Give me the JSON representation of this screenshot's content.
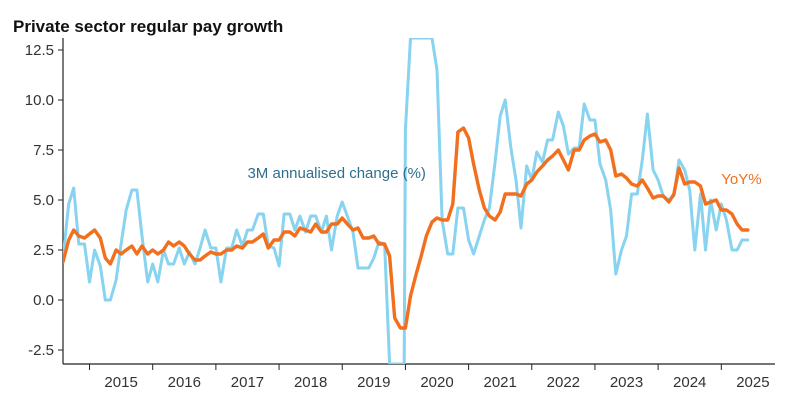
{
  "chart_data": {
    "type": "line",
    "title": "Private sector regular pay growth",
    "xlabel": "",
    "ylabel": "",
    "ylim": [
      -3.2,
      13.1
    ],
    "xlim": [
      2014.58,
      2025.85
    ],
    "x_ticks": [
      {
        "value": 2015.5,
        "label": "2015"
      },
      {
        "value": 2016.5,
        "label": "2016"
      },
      {
        "value": 2017.5,
        "label": "2017"
      },
      {
        "value": 2018.5,
        "label": "2018"
      },
      {
        "value": 2019.5,
        "label": "2019"
      },
      {
        "value": 2020.5,
        "label": "2020"
      },
      {
        "value": 2021.5,
        "label": "2021"
      },
      {
        "value": 2022.5,
        "label": "2022"
      },
      {
        "value": 2023.5,
        "label": "2023"
      },
      {
        "value": 2024.5,
        "label": "2024"
      },
      {
        "value": 2025.5,
        "label": "2025"
      }
    ],
    "y_ticks": [
      {
        "value": 12.5,
        "label": "12.5"
      },
      {
        "value": 10.0,
        "label": "10.0"
      },
      {
        "value": 7.5,
        "label": "7.5"
      },
      {
        "value": 5.0,
        "label": "5.0"
      },
      {
        "value": 2.5,
        "label": "2.5"
      },
      {
        "value": 0.0,
        "label": "0.0"
      },
      {
        "value": -2.5,
        "label": "-2.5"
      }
    ],
    "series": [
      {
        "name": "3M annualised change (%)",
        "color": "#87D3F0",
        "values": [
          [
            2014.58,
            2.1
          ],
          [
            2014.67,
            4.8
          ],
          [
            2014.75,
            5.6
          ],
          [
            2014.83,
            2.8
          ],
          [
            2014.92,
            2.8
          ],
          [
            2015.0,
            0.9
          ],
          [
            2015.08,
            2.5
          ],
          [
            2015.17,
            1.7
          ],
          [
            2015.25,
            0.0
          ],
          [
            2015.33,
            0.0
          ],
          [
            2015.42,
            1.0
          ],
          [
            2015.5,
            2.8
          ],
          [
            2015.58,
            4.5
          ],
          [
            2015.67,
            5.5
          ],
          [
            2015.75,
            5.5
          ],
          [
            2015.83,
            3.2
          ],
          [
            2015.92,
            0.9
          ],
          [
            2016.0,
            1.8
          ],
          [
            2016.08,
            0.9
          ],
          [
            2016.17,
            2.5
          ],
          [
            2016.25,
            1.8
          ],
          [
            2016.33,
            1.8
          ],
          [
            2016.42,
            2.6
          ],
          [
            2016.5,
            1.8
          ],
          [
            2016.58,
            2.4
          ],
          [
            2016.67,
            1.8
          ],
          [
            2016.75,
            2.6
          ],
          [
            2016.83,
            3.5
          ],
          [
            2016.92,
            2.6
          ],
          [
            2017.0,
            2.6
          ],
          [
            2017.08,
            0.9
          ],
          [
            2017.17,
            2.6
          ],
          [
            2017.25,
            2.6
          ],
          [
            2017.33,
            3.5
          ],
          [
            2017.42,
            2.7
          ],
          [
            2017.5,
            3.5
          ],
          [
            2017.58,
            3.5
          ],
          [
            2017.67,
            4.3
          ],
          [
            2017.75,
            4.3
          ],
          [
            2017.83,
            2.7
          ],
          [
            2017.92,
            2.6
          ],
          [
            2018.0,
            1.7
          ],
          [
            2018.08,
            4.3
          ],
          [
            2018.17,
            4.3
          ],
          [
            2018.25,
            3.5
          ],
          [
            2018.33,
            4.2
          ],
          [
            2018.42,
            3.4
          ],
          [
            2018.5,
            4.2
          ],
          [
            2018.58,
            4.2
          ],
          [
            2018.67,
            3.4
          ],
          [
            2018.75,
            4.2
          ],
          [
            2018.83,
            2.5
          ],
          [
            2018.92,
            4.2
          ],
          [
            2019.0,
            4.9
          ],
          [
            2019.08,
            4.2
          ],
          [
            2019.17,
            3.4
          ],
          [
            2019.25,
            1.6
          ],
          [
            2019.33,
            1.6
          ],
          [
            2019.42,
            1.6
          ],
          [
            2019.5,
            2.1
          ],
          [
            2019.58,
            2.9
          ],
          [
            2019.67,
            2.8
          ],
          [
            2019.75,
            -3.2
          ],
          [
            2019.83,
            -3.2
          ],
          [
            2019.92,
            -3.2
          ],
          [
            2019.98,
            -3.2
          ],
          [
            2020.0,
            8.5
          ],
          [
            2020.08,
            13.1
          ],
          [
            2020.17,
            13.1
          ],
          [
            2020.25,
            13.1
          ],
          [
            2020.33,
            13.1
          ],
          [
            2020.42,
            13.1
          ],
          [
            2020.5,
            11.5
          ],
          [
            2020.58,
            4.0
          ],
          [
            2020.67,
            2.3
          ],
          [
            2020.75,
            2.3
          ],
          [
            2020.83,
            4.6
          ],
          [
            2020.92,
            4.6
          ],
          [
            2021.0,
            3.0
          ],
          [
            2021.08,
            2.3
          ],
          [
            2021.17,
            3.2
          ],
          [
            2021.25,
            4.0
          ],
          [
            2021.33,
            4.6
          ],
          [
            2021.42,
            6.9
          ],
          [
            2021.5,
            9.2
          ],
          [
            2021.58,
            10.0
          ],
          [
            2021.67,
            7.6
          ],
          [
            2021.75,
            6.0
          ],
          [
            2021.83,
            3.6
          ],
          [
            2021.92,
            6.7
          ],
          [
            2022.0,
            6.0
          ],
          [
            2022.08,
            7.4
          ],
          [
            2022.17,
            6.9
          ],
          [
            2022.25,
            8.0
          ],
          [
            2022.33,
            8.0
          ],
          [
            2022.42,
            9.4
          ],
          [
            2022.5,
            8.7
          ],
          [
            2022.58,
            7.3
          ],
          [
            2022.67,
            7.6
          ],
          [
            2022.75,
            7.6
          ],
          [
            2022.83,
            9.8
          ],
          [
            2022.92,
            9.0
          ],
          [
            2023.0,
            9.0
          ],
          [
            2023.08,
            6.8
          ],
          [
            2023.17,
            6.0
          ],
          [
            2023.25,
            4.5
          ],
          [
            2023.33,
            1.3
          ],
          [
            2023.42,
            2.5
          ],
          [
            2023.5,
            3.2
          ],
          [
            2023.58,
            5.3
          ],
          [
            2023.67,
            5.3
          ],
          [
            2023.75,
            7.0
          ],
          [
            2023.83,
            9.3
          ],
          [
            2023.92,
            6.5
          ],
          [
            2024.0,
            6.0
          ],
          [
            2024.08,
            5.2
          ],
          [
            2024.17,
            5.0
          ],
          [
            2024.25,
            5.2
          ],
          [
            2024.33,
            7.0
          ],
          [
            2024.42,
            6.5
          ],
          [
            2024.5,
            5.5
          ],
          [
            2024.58,
            2.5
          ],
          [
            2024.67,
            5.3
          ],
          [
            2024.75,
            2.5
          ],
          [
            2024.83,
            5.0
          ],
          [
            2024.92,
            3.5
          ],
          [
            2025.0,
            4.8
          ],
          [
            2025.08,
            4.0
          ],
          [
            2025.17,
            2.5
          ],
          [
            2025.25,
            2.5
          ],
          [
            2025.33,
            3.0
          ],
          [
            2025.42,
            3.0
          ]
        ]
      },
      {
        "name": "YoY%",
        "color": "#F26F1E",
        "values": [
          [
            2014.58,
            1.9
          ],
          [
            2014.67,
            3.0
          ],
          [
            2014.75,
            3.5
          ],
          [
            2014.83,
            3.2
          ],
          [
            2014.92,
            3.1
          ],
          [
            2015.0,
            3.3
          ],
          [
            2015.08,
            3.5
          ],
          [
            2015.17,
            3.1
          ],
          [
            2015.25,
            2.1
          ],
          [
            2015.33,
            1.8
          ],
          [
            2015.42,
            2.5
          ],
          [
            2015.5,
            2.3
          ],
          [
            2015.58,
            2.5
          ],
          [
            2015.67,
            2.7
          ],
          [
            2015.75,
            2.3
          ],
          [
            2015.83,
            2.7
          ],
          [
            2015.92,
            2.3
          ],
          [
            2016.0,
            2.5
          ],
          [
            2016.08,
            2.3
          ],
          [
            2016.17,
            2.5
          ],
          [
            2016.25,
            2.9
          ],
          [
            2016.33,
            2.7
          ],
          [
            2016.42,
            2.9
          ],
          [
            2016.5,
            2.7
          ],
          [
            2016.58,
            2.3
          ],
          [
            2016.67,
            2.0
          ],
          [
            2016.75,
            2.0
          ],
          [
            2016.83,
            2.2
          ],
          [
            2016.92,
            2.4
          ],
          [
            2017.0,
            2.3
          ],
          [
            2017.08,
            2.3
          ],
          [
            2017.17,
            2.5
          ],
          [
            2017.25,
            2.5
          ],
          [
            2017.33,
            2.7
          ],
          [
            2017.42,
            2.6
          ],
          [
            2017.5,
            2.9
          ],
          [
            2017.58,
            2.9
          ],
          [
            2017.67,
            3.1
          ],
          [
            2017.75,
            3.3
          ],
          [
            2017.83,
            2.6
          ],
          [
            2017.92,
            3.0
          ],
          [
            2018.0,
            3.0
          ],
          [
            2018.08,
            3.4
          ],
          [
            2018.17,
            3.4
          ],
          [
            2018.25,
            3.2
          ],
          [
            2018.33,
            3.6
          ],
          [
            2018.42,
            3.5
          ],
          [
            2018.5,
            3.4
          ],
          [
            2018.58,
            3.8
          ],
          [
            2018.67,
            3.4
          ],
          [
            2018.75,
            3.4
          ],
          [
            2018.83,
            3.8
          ],
          [
            2018.92,
            3.8
          ],
          [
            2019.0,
            4.1
          ],
          [
            2019.08,
            3.8
          ],
          [
            2019.17,
            3.5
          ],
          [
            2019.25,
            3.6
          ],
          [
            2019.33,
            3.1
          ],
          [
            2019.42,
            3.1
          ],
          [
            2019.5,
            3.2
          ],
          [
            2019.58,
            2.8
          ],
          [
            2019.67,
            2.8
          ],
          [
            2019.75,
            2.2
          ],
          [
            2019.83,
            -0.9
          ],
          [
            2019.92,
            -1.4
          ],
          [
            2020.0,
            -1.4
          ],
          [
            2020.08,
            0.2
          ],
          [
            2020.17,
            1.3
          ],
          [
            2020.25,
            2.2
          ],
          [
            2020.33,
            3.2
          ],
          [
            2020.42,
            3.9
          ],
          [
            2020.5,
            4.1
          ],
          [
            2020.58,
            4.0
          ],
          [
            2020.67,
            4.0
          ],
          [
            2020.75,
            4.8
          ],
          [
            2020.83,
            8.4
          ],
          [
            2020.92,
            8.6
          ],
          [
            2021.0,
            8.1
          ],
          [
            2021.08,
            6.8
          ],
          [
            2021.17,
            5.5
          ],
          [
            2021.25,
            4.6
          ],
          [
            2021.33,
            4.2
          ],
          [
            2021.42,
            4.0
          ],
          [
            2021.5,
            4.4
          ],
          [
            2021.58,
            5.3
          ],
          [
            2021.67,
            5.3
          ],
          [
            2021.75,
            5.3
          ],
          [
            2021.83,
            5.2
          ],
          [
            2021.92,
            5.8
          ],
          [
            2022.0,
            6.0
          ],
          [
            2022.08,
            6.4
          ],
          [
            2022.17,
            6.7
          ],
          [
            2022.25,
            7.0
          ],
          [
            2022.33,
            7.2
          ],
          [
            2022.42,
            7.5
          ],
          [
            2022.5,
            7.0
          ],
          [
            2022.58,
            6.5
          ],
          [
            2022.67,
            7.5
          ],
          [
            2022.75,
            7.5
          ],
          [
            2022.83,
            8.0
          ],
          [
            2022.92,
            8.2
          ],
          [
            2023.0,
            8.3
          ],
          [
            2023.08,
            7.9
          ],
          [
            2023.17,
            8.0
          ],
          [
            2023.25,
            7.5
          ],
          [
            2023.33,
            6.2
          ],
          [
            2023.42,
            6.3
          ],
          [
            2023.5,
            6.1
          ],
          [
            2023.58,
            5.8
          ],
          [
            2023.67,
            5.7
          ],
          [
            2023.75,
            6.0
          ],
          [
            2023.83,
            5.6
          ],
          [
            2023.92,
            5.1
          ],
          [
            2024.0,
            5.2
          ],
          [
            2024.08,
            5.2
          ],
          [
            2024.17,
            4.9
          ],
          [
            2024.25,
            5.3
          ],
          [
            2024.33,
            6.6
          ],
          [
            2024.42,
            5.8
          ],
          [
            2024.5,
            5.9
          ],
          [
            2024.58,
            5.9
          ],
          [
            2024.67,
            5.7
          ],
          [
            2024.75,
            4.8
          ],
          [
            2024.83,
            4.9
          ],
          [
            2024.92,
            5.0
          ],
          [
            2025.0,
            4.5
          ],
          [
            2025.08,
            4.5
          ],
          [
            2025.17,
            4.3
          ],
          [
            2025.25,
            3.8
          ],
          [
            2025.33,
            3.5
          ],
          [
            2025.42,
            3.5
          ]
        ]
      }
    ],
    "annotations": [
      {
        "text": "3M annualised change (%)",
        "series": "3M annualised change (%)",
        "color": "#2E6E8E",
        "at": [
          2017.5,
          6.1
        ]
      },
      {
        "text": "YoY%",
        "series": "YoY%",
        "color": "#F26F1E",
        "at": [
          2025.0,
          5.8
        ]
      }
    ],
    "grid": false,
    "legend": "none"
  }
}
